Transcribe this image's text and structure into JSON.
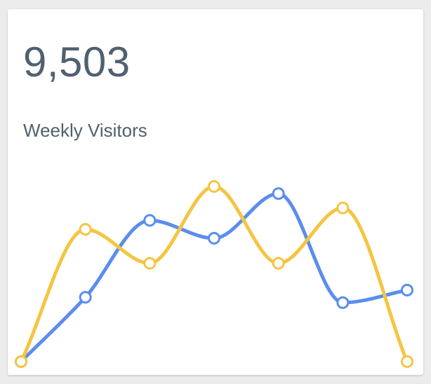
{
  "widget": {
    "value": "9,503",
    "label": "Weekly Visitors"
  },
  "colors": {
    "text": "#4f6170",
    "blue": "#5b8def",
    "yellow": "#f4c542",
    "background": "#ffffff"
  },
  "chart_data": {
    "type": "line",
    "smooth": true,
    "axes_visible": false,
    "grid": false,
    "legend": "none",
    "x": [
      0,
      1,
      2,
      3,
      4,
      5,
      6
    ],
    "ylim": [
      0,
      100
    ],
    "series": [
      {
        "color": "#5b8def",
        "values": [
          0,
          36,
          79,
          69,
          94,
          33,
          40
        ]
      },
      {
        "color": "#f4c542",
        "values": [
          0,
          74,
          55,
          98,
          55,
          86,
          0
        ]
      }
    ]
  }
}
